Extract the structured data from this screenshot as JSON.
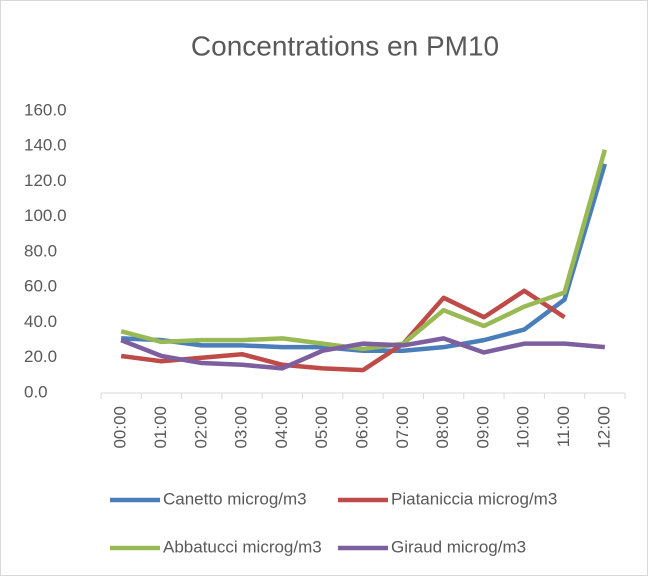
{
  "chart_data": {
    "type": "line",
    "title": "Concentrations en PM10",
    "categories": [
      "00:00",
      "01:00",
      "02:00",
      "03:00",
      "04:00",
      "05:00",
      "06:00",
      "07:00",
      "08:00",
      "09:00",
      "10:00",
      "11:00",
      "12:00"
    ],
    "series": [
      {
        "name": "Canetto microg/m3",
        "color": "#4a7ebb",
        "values": [
          31,
          30,
          27,
          27,
          26,
          26,
          24,
          24,
          26,
          30,
          36,
          53,
          130
        ]
      },
      {
        "name": "Piataniccia microg/m3",
        "color": "#be4b48",
        "values": [
          21,
          18,
          20,
          22,
          16,
          14,
          13,
          28,
          54,
          43,
          58,
          43,
          null
        ]
      },
      {
        "name": "Abbatucci microg/m3",
        "color": "#98b954",
        "values": [
          35,
          29,
          30,
          30,
          31,
          28,
          25,
          28,
          47,
          38,
          49,
          57,
          138
        ]
      },
      {
        "name": "Giraud microg/m3",
        "color": "#7d5fa0",
        "values": [
          30,
          21,
          17,
          16,
          14,
          24,
          28,
          27,
          31,
          23,
          28,
          28,
          26
        ]
      }
    ],
    "ylim": [
      0,
      160
    ],
    "yticks": [
      {
        "value": 0,
        "label": "0.0"
      },
      {
        "value": 20,
        "label": "20.0"
      },
      {
        "value": 40,
        "label": "40.0"
      },
      {
        "value": 60,
        "label": "60.0"
      },
      {
        "value": 80,
        "label": "80.0"
      },
      {
        "value": 100,
        "label": "100.0"
      },
      {
        "value": 120,
        "label": "120.0"
      },
      {
        "value": 140,
        "label": "140.0"
      },
      {
        "value": 160,
        "label": "160.0"
      }
    ],
    "grid": false,
    "legend": "bottom"
  }
}
